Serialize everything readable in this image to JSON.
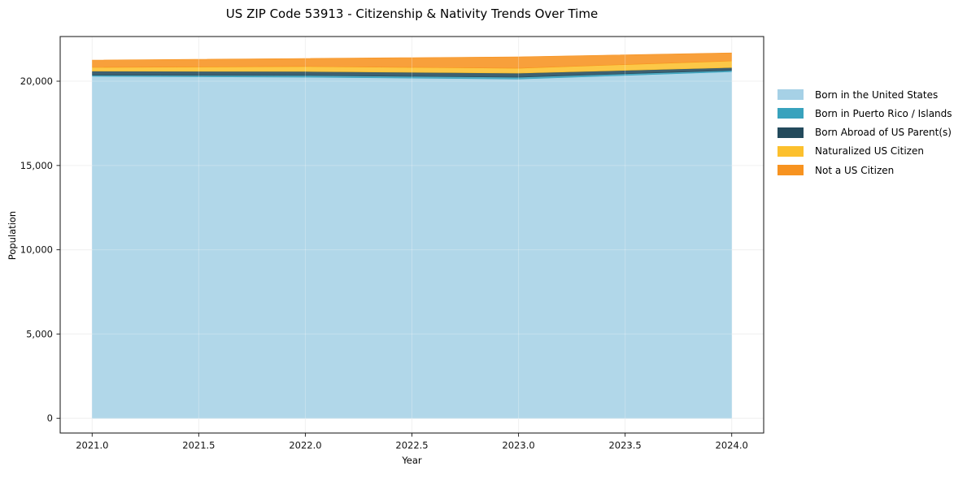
{
  "title": "US ZIP Code 53913 - Citizenship & Nativity Trends Over Time",
  "chart_data": {
    "type": "area",
    "stacked": true,
    "title": "US ZIP Code 53913 - Citizenship & Nativity Trends Over Time",
    "xlabel": "Year",
    "ylabel": "Population",
    "x": [
      2021,
      2022,
      2023,
      2024
    ],
    "series": [
      {
        "name": "Born in the United States",
        "color": "#a6d1e6",
        "values": [
          20290,
          20240,
          20130,
          20560
        ]
      },
      {
        "name": "Born in Puerto Rico / Islands",
        "color": "#38a2bd",
        "values": [
          70,
          100,
          110,
          80
        ]
      },
      {
        "name": "Born Abroad of US Parent(s)",
        "color": "#234a5c",
        "values": [
          240,
          240,
          240,
          170
        ]
      },
      {
        "name": "Naturalized US Citizen",
        "color": "#fcc02d",
        "values": [
          220,
          290,
          290,
          390
        ]
      },
      {
        "name": "Not a US Citizen",
        "color": "#f79320",
        "values": [
          430,
          480,
          675,
          480
        ]
      }
    ],
    "x_ticks": [
      2021.0,
      2021.5,
      2022.0,
      2022.5,
      2023.0,
      2023.5,
      2024.0
    ],
    "x_tick_labels": [
      "2021.0",
      "2021.5",
      "2022.0",
      "2022.5",
      "2023.0",
      "2023.5",
      "2024.0"
    ],
    "y_ticks": [
      0,
      5000,
      10000,
      15000,
      20000
    ],
    "y_tick_labels": [
      "0",
      "5,000",
      "10,000",
      "15,000",
      "20,000"
    ],
    "xlim": [
      2020.85,
      2024.15
    ],
    "ylim": [
      -870,
      22650
    ],
    "grid": true,
    "legend_position": "right"
  },
  "colors": {
    "background": "#ffffff",
    "grid": "#ececec",
    "frame": "#262626",
    "tick_label": "#111111",
    "fill_opacity": 0.88
  }
}
